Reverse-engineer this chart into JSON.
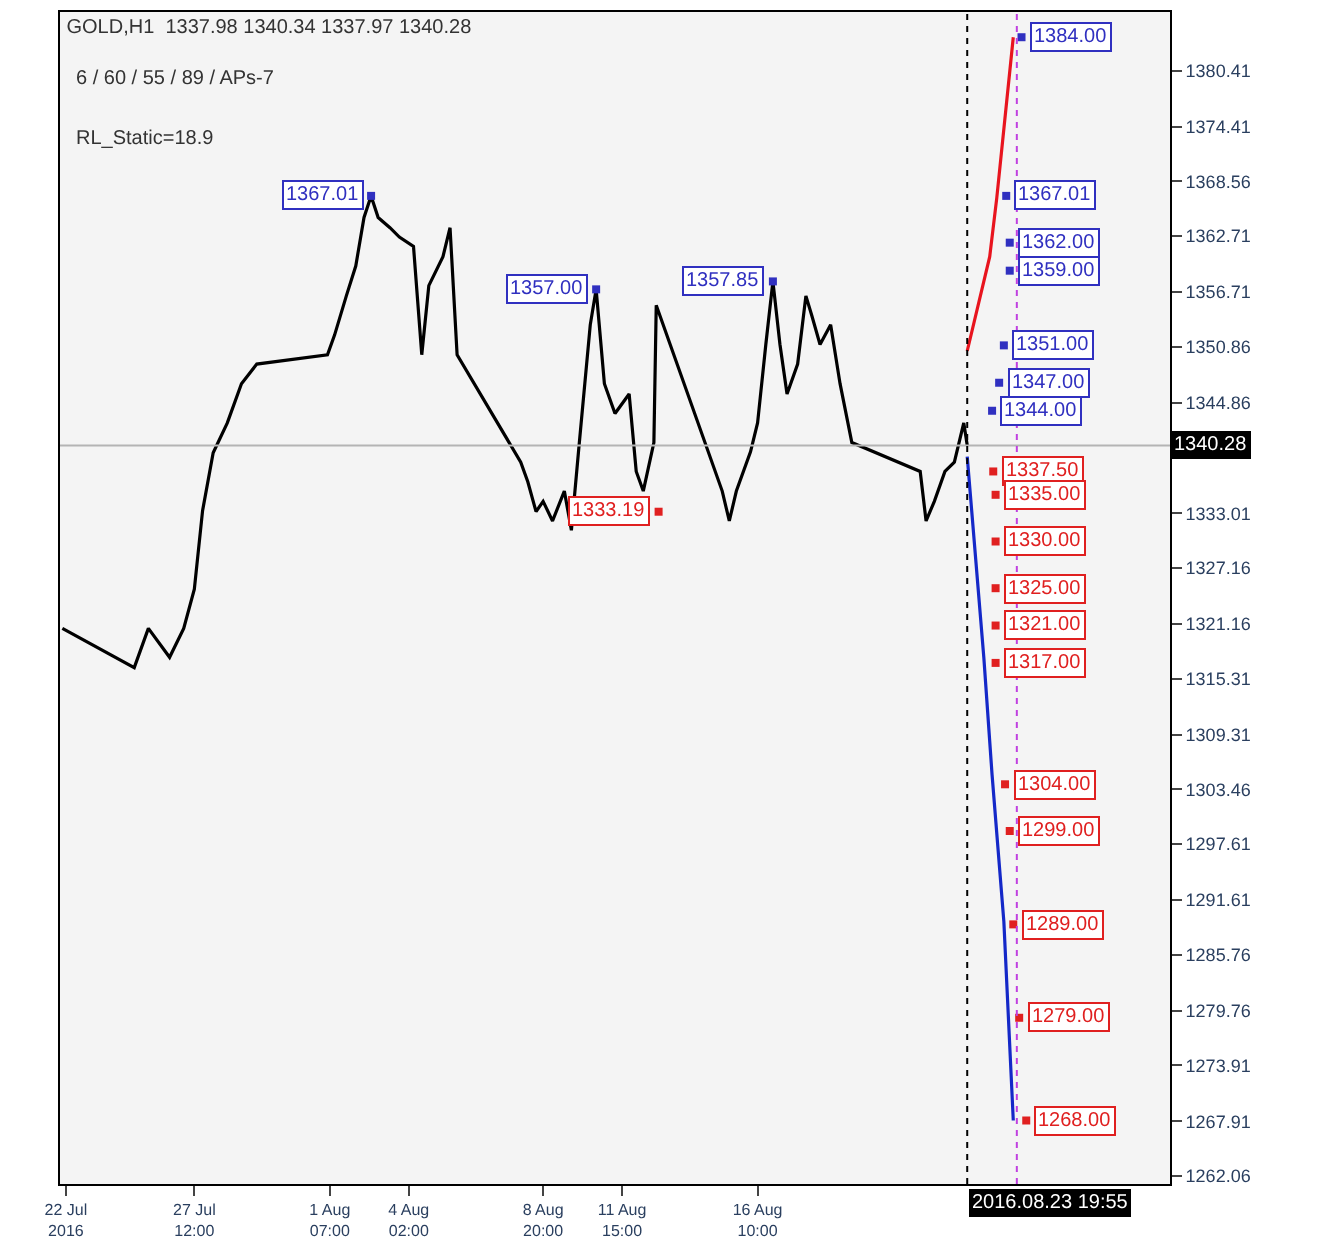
{
  "chart_data": {
    "type": "line",
    "title": "GOLD,H1  1337.98 1340.34 1337.97 1340.28",
    "subtitle": "6 / 60 / 55 / 89 / APs-7",
    "xlim": [
      "2016-07-22T18:00",
      "2016-08-31T00:00"
    ],
    "ylim": [
      1261.2,
      1386.7
    ],
    "xticks": [
      {
        "value": "2016-07-22T23:00",
        "label": "22 Jul 2016"
      },
      {
        "value": "2016-07-27T12:00",
        "label": "27 Jul 12:00"
      },
      {
        "value": "2016-08-01T07:00",
        "label": "1 Aug 07:00"
      },
      {
        "value": "2016-08-04T02:00",
        "label": "4 Aug 02:00"
      },
      {
        "value": "2016-08-08T20:00",
        "label": "8 Aug 20:00"
      },
      {
        "value": "2016-08-11T15:00",
        "label": "11 Aug 15:00"
      },
      {
        "value": "2016-08-16T10:00",
        "label": "16 Aug 10:00"
      }
    ],
    "yticks": [
      1380.41,
      1374.41,
      1368.56,
      1362.71,
      1356.71,
      1350.86,
      1344.86,
      1333.01,
      1327.16,
      1321.16,
      1315.31,
      1309.31,
      1303.46,
      1297.61,
      1291.61,
      1285.76,
      1279.76,
      1273.91,
      1267.91,
      1262.06
    ],
    "grid": false,
    "series": [
      {
        "color": "#000000",
        "x": [
          "2016-07-22T20:00",
          "2016-07-25T09:00",
          "2016-07-25T21:00",
          "2016-07-26T15:00",
          "2016-07-27T03:00",
          "2016-07-27T12:00",
          "2016-07-27T19:00",
          "2016-07-28T04:00",
          "2016-07-28T16:00",
          "2016-07-29T04:00",
          "2016-07-29T17:00",
          "2016-08-01T05:00",
          "2016-08-01T11:00",
          "2016-08-01T21:00",
          "2016-08-02T05:00",
          "2016-08-02T12:00",
          "2016-08-02T18:00",
          "2016-08-03T00:00",
          "2016-08-03T10:00",
          "2016-08-03T18:00",
          "2016-08-04T06:00",
          "2016-08-04T13:00",
          "2016-08-04T19:00",
          "2016-08-05T07:00",
          "2016-08-05T13:00",
          "2016-08-05T19:00",
          "2016-08-08T01:00",
          "2016-08-08T07:00",
          "2016-08-08T14:00",
          "2016-08-08T20:00",
          "2016-08-09T04:00",
          "2016-08-09T14:00",
          "2016-08-09T20:00",
          "2016-08-10T02:00",
          "2016-08-10T12:00",
          "2016-08-10T17:00",
          "2016-08-11T00:00",
          "2016-08-11T09:00",
          "2016-08-11T21:00",
          "2016-08-12T03:00",
          "2016-08-12T09:00",
          "2016-08-12T18:00",
          "2016-08-12T20:00",
          "2016-08-15T04:00",
          "2016-08-15T10:00",
          "2016-08-15T16:00",
          "2016-08-16T04:00",
          "2016-08-16T10:00",
          "2016-08-16T17:00",
          "2016-08-16T23:00",
          "2016-08-17T05:00",
          "2016-08-17T11:00",
          "2016-08-17T20:00",
          "2016-08-18T03:00",
          "2016-08-18T08:00",
          "2016-08-18T15:00",
          "2016-08-19T00:00",
          "2016-08-19T08:00",
          "2016-08-19T18:00",
          "2016-08-22T04:00",
          "2016-08-22T09:00",
          "2016-08-22T16:00",
          "2016-08-23T01:00",
          "2016-08-23T09:00",
          "2016-08-23T17:00",
          "2016-08-23T19:55"
        ],
        "values": [
          1320.7,
          1316.5,
          1320.7,
          1317.6,
          1320.7,
          1324.9,
          1333.3,
          1339.5,
          1342.7,
          1346.9,
          1349.0,
          1350.0,
          1352.1,
          1356.3,
          1359.5,
          1364.7,
          1367.01,
          1364.7,
          1363.6,
          1362.6,
          1361.6,
          1350.0,
          1357.4,
          1360.5,
          1363.6,
          1350.0,
          1338.5,
          1336.4,
          1333.2,
          1334.3,
          1332.2,
          1335.4,
          1331.2,
          1339.6,
          1353.2,
          1357.0,
          1346.9,
          1343.7,
          1345.8,
          1337.5,
          1335.4,
          1340.6,
          1355.3,
          1335.4,
          1332.2,
          1335.4,
          1339.6,
          1342.7,
          1351.1,
          1357.85,
          1351.1,
          1345.8,
          1349.0,
          1356.3,
          1354.2,
          1351.1,
          1353.2,
          1346.9,
          1340.6,
          1337.5,
          1332.2,
          1334.3,
          1337.5,
          1338.5,
          1342.7,
          1340.3
        ]
      },
      {
        "color": "#e8141e",
        "x": [
          "2016-08-23T19:55",
          "2016-08-24T15:00",
          "2016-08-24T21:00",
          "2016-08-25T11:00"
        ],
        "values": [
          1350.4,
          1360.5,
          1366.8,
          1384.0
        ]
      },
      {
        "color": "#1428c8",
        "x": [
          "2016-08-23T19:55",
          "2016-08-24T10:00",
          "2016-08-24T17:00",
          "2016-08-25T03:00",
          "2016-08-25T11:00"
        ],
        "values": [
          1339.1,
          1317.6,
          1305.0,
          1289.3,
          1268.0
        ]
      },
      {
        "type": "scatter",
        "marker": "square",
        "color": "#3030c0",
        "x": [
          "2016-08-02T18:00",
          "2016-08-10T17:00",
          "2016-08-16T23:00",
          "2016-08-25T18:00",
          "2016-08-25T05:00",
          "2016-08-25T08:00",
          "2016-08-25T08:00",
          "2016-08-25T03:00",
          "2016-08-24T23:00",
          "2016-08-24T17:00"
        ],
        "values": [
          1367.01,
          1357.0,
          1357.85,
          1384.0,
          1367.01,
          1362.0,
          1359.0,
          1351.0,
          1347.0,
          1344.0
        ]
      },
      {
        "type": "scatter",
        "marker": "square",
        "color": "#e02020",
        "x": [
          "2016-08-12T22:00",
          "2016-08-24T18:00",
          "2016-08-24T20:00",
          "2016-08-24T20:00",
          "2016-08-24T20:00",
          "2016-08-24T20:00",
          "2016-08-24T20:00",
          "2016-08-25T04:00",
          "2016-08-25T08:00",
          "2016-08-25T11:00",
          "2016-08-25T16:00",
          "2016-08-25T22:00"
        ],
        "values": [
          1333.19,
          1337.5,
          1335.0,
          1330.0,
          1325.0,
          1321.0,
          1317.0,
          1304.0,
          1299.0,
          1289.0,
          1279.0,
          1268.0
        ]
      }
    ],
    "ref_lines": [
      {
        "axis": "y",
        "value": 1340.28,
        "label": "1340.28",
        "color": "#b4b4b4"
      },
      {
        "axis": "x",
        "value": "2016-08-23T19:55",
        "label": "2016.08.23 19:55",
        "color": "#000000",
        "line_style": "dotted"
      },
      {
        "axis": "x",
        "value": "2016-08-25T14:00",
        "color": "#c040e0",
        "line_style": "dotted"
      }
    ],
    "annotations": [
      "RL_Static=18.9",
      {
        "text": "1367.01",
        "x": "2016-08-02T18:00",
        "y": 1367.01
      },
      {
        "text": "1357.00",
        "x": "2016-08-10T17:00",
        "y": 1357.0
      },
      {
        "text": "1357.85",
        "x": "2016-08-16T23:00",
        "y": 1357.85
      },
      {
        "text": "1333.19",
        "x": "2016-08-12T22:00",
        "y": 1333.19
      },
      {
        "text": "1384.00",
        "x": "2016-08-25T18:00",
        "y": 1384.0
      },
      {
        "text": "1367.01",
        "x": "2016-08-25T05:00",
        "y": 1367.01
      },
      {
        "text": "1362.00",
        "x": "2016-08-25T08:00",
        "y": 1362.0
      },
      {
        "text": "1359.00",
        "x": "2016-08-25T08:00",
        "y": 1359.0
      },
      {
        "text": "1351.00",
        "x": "2016-08-25T03:00",
        "y": 1351.0
      },
      {
        "text": "1347.00",
        "x": "2016-08-24T23:00",
        "y": 1347.0
      },
      {
        "text": "1344.00",
        "x": "2016-08-24T17:00",
        "y": 1344.0
      },
      {
        "text": "1337.50",
        "x": "2016-08-24T18:00",
        "y": 1337.5
      },
      {
        "text": "1335.00",
        "x": "2016-08-24T20:00",
        "y": 1335.0
      },
      {
        "text": "1330.00",
        "x": "2016-08-24T20:00",
        "y": 1330.0
      },
      {
        "text": "1325.00",
        "x": "2016-08-24T20:00",
        "y": 1325.0
      },
      {
        "text": "1321.00",
        "x": "2016-08-24T20:00",
        "y": 1321.0
      },
      {
        "text": "1317.00",
        "x": "2016-08-24T20:00",
        "y": 1317.0
      },
      {
        "text": "1304.00",
        "x": "2016-08-25T04:00",
        "y": 1304.0
      },
      {
        "text": "1299.00",
        "x": "2016-08-25T08:00",
        "y": 1299.0
      },
      {
        "text": "1289.00",
        "x": "2016-08-25T11:00",
        "y": 1289.0
      },
      {
        "text": "1279.00",
        "x": "2016-08-25T16:00",
        "y": 1279.0
      },
      {
        "text": "1268.00",
        "x": "2016-08-25T22:00",
        "y": 1268.0
      }
    ]
  }
}
